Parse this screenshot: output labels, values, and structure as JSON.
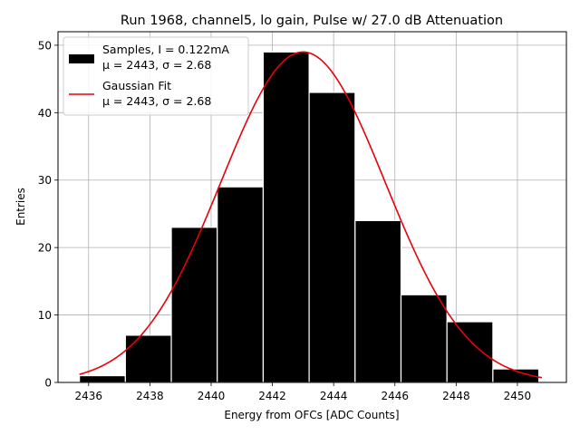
{
  "chart_data": {
    "type": "bar",
    "title": "Run 1968, channel5, lo gain, Pulse w/ 27.0 dB Attenuation",
    "xlabel": "Energy from OFCs [ADC Counts]",
    "ylabel": "Entries",
    "xlim": [
      2435.0,
      2451.6
    ],
    "ylim": [
      0,
      52
    ],
    "xticks": [
      2436,
      2438,
      2440,
      2442,
      2444,
      2446,
      2448,
      2450
    ],
    "yticks": [
      0,
      10,
      20,
      30,
      40,
      50
    ],
    "grid": true,
    "bins": {
      "edges": [
        2435.7,
        2437.2,
        2438.7,
        2440.2,
        2441.7,
        2443.2,
        2444.7,
        2446.2,
        2447.7,
        2449.2,
        2450.7
      ],
      "values": [
        1,
        7,
        23,
        29,
        49,
        43,
        24,
        13,
        9,
        2
      ],
      "color": "#000000",
      "edgecolor": "#ffffff"
    },
    "fit": {
      "type": "gaussian",
      "amplitude": 49.0,
      "mu": 2443.0,
      "sigma": 2.68,
      "x_range": [
        2435.7,
        2450.8
      ],
      "color": "#e8000b"
    },
    "legend": {
      "position": "top-left",
      "entries": [
        {
          "line1": "Samples, I = 0.122mA",
          "line2": "μ = 2443, σ = 2.68",
          "marker": "patch",
          "color": "#000000"
        },
        {
          "line1": "Gaussian Fit",
          "line2": "μ = 2443, σ = 2.68",
          "marker": "line",
          "color": "#e8000b"
        }
      ]
    }
  }
}
